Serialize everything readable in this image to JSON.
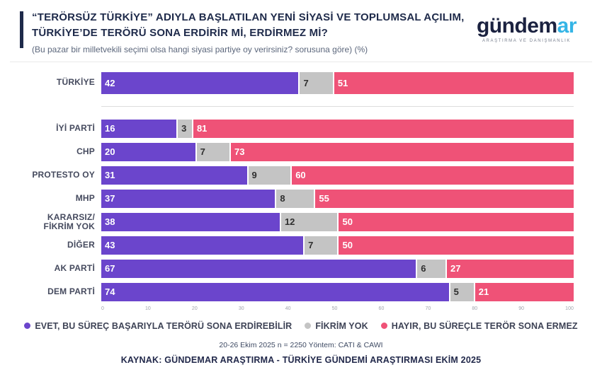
{
  "header": {
    "title": "“TERÖRSÜZ TÜRKİYE” ADIYLA BAŞLATILAN YENİ SİYASİ VE TOPLUMSAL AÇILIM, TÜRKİYE’DE TERÖRÜ SONA ERDİRİR Mİ, ERDİRMEZ Mİ?",
    "subtitle": "(Bu pazar bir milletvekili seçimi olsa hangi siyasi partiye oy verirsiniz? sorusuna göre) (%)",
    "logo": {
      "brand_main": "gündem",
      "brand_accent": "ar",
      "tagline": "ARAŞTIRMA VE DANIŞMANLIK",
      "accent_color": "#35b5e6",
      "main_color": "#1b2240"
    }
  },
  "chart_data": {
    "type": "bar",
    "orientation": "horizontal",
    "stacked": true,
    "title": "“TERÖRSÜZ TÜRKİYE” ADIYLA BAŞLATILAN YENİ SİYASİ VE TOPLUMSAL AÇILIM, TÜRKİYE’DE TERÖRÜ SONA ERDİRİR Mİ, ERDİRMEZ Mİ?",
    "subtitle": "(Bu pazar bir milletvekili seçimi olsa hangi siyasi partiye oy verirsiniz? sorusuna göre) (%)",
    "categories": [
      "TÜRKİYE",
      "İYİ PARTİ",
      "CHP",
      "PROTESTO OY",
      "MHP",
      "KARARSIZ/ FİKRİM YOK",
      "DİĞER",
      "AK PARTİ",
      "DEM PARTİ"
    ],
    "series": [
      {
        "name": "EVET, BU SÜREÇ BAŞARIYLA TERÖRÜ SONA ERDİREBİLİR",
        "color": "#6b45cc",
        "text_color": "#ffffff",
        "values": [
          42,
          16,
          20,
          31,
          37,
          38,
          43,
          67,
          74
        ]
      },
      {
        "name": "FİKRİM YOK",
        "color": "#c4c4c4",
        "text_color": "#2f2f2f",
        "values": [
          7,
          3,
          7,
          9,
          8,
          12,
          7,
          6,
          5
        ]
      },
      {
        "name": "HAYIR, BU SÜREÇLE TERÖR SONA ERMEZ",
        "color": "#ef5277",
        "text_color": "#ffffff",
        "values": [
          51,
          81,
          73,
          60,
          55,
          50,
          50,
          27,
          21
        ]
      }
    ],
    "separator_after_index": 0,
    "axis": {
      "ticks": [
        0,
        10,
        20,
        30,
        40,
        50,
        60,
        70,
        80,
        90,
        100
      ]
    },
    "xlim": [
      0,
      100
    ],
    "grid": false,
    "legend_position": "bottom"
  },
  "footer": {
    "methodology": "20-26 Ekim 2025 n = 2250 Yöntem: CATI & CAWI",
    "source": "KAYNAK: GÜNDEMAR ARAŞTIRMA - TÜRKİYE GÜNDEMİ ARAŞTIRMASI EKİM 2025"
  }
}
